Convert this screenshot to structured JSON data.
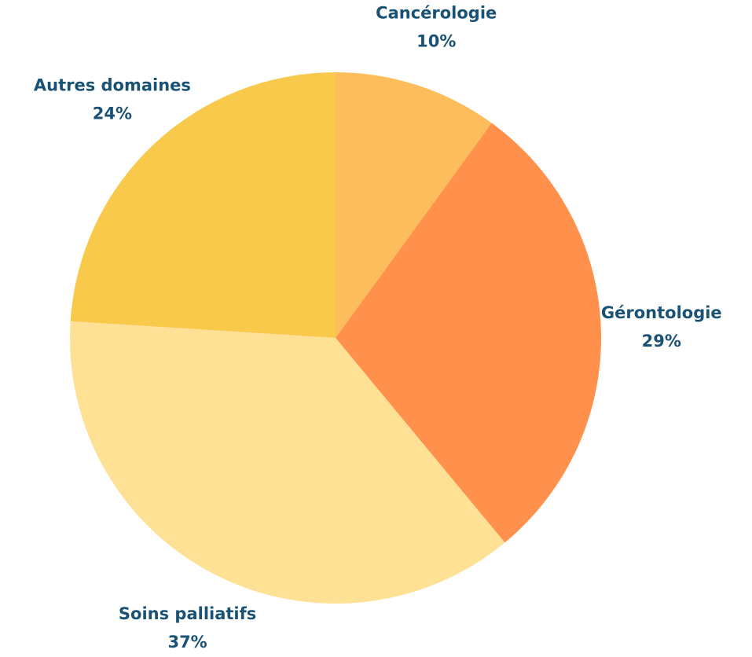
{
  "chart_data": {
    "type": "pie",
    "categories": [
      "Cancérologie",
      "Gérontologie",
      "Soins palliatifs",
      "Autres domaines"
    ],
    "values": [
      10,
      29,
      37,
      24
    ],
    "value_labels": [
      "10%",
      "29%",
      "37%",
      "24%"
    ],
    "colors": [
      "#fdbd5a",
      "#ff914d",
      "#ffe196",
      "#f9c94b"
    ]
  }
}
